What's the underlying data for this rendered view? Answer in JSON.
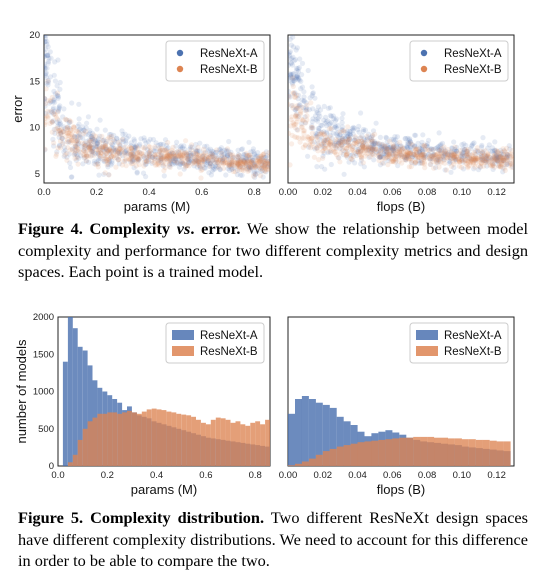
{
  "figure4": {
    "number": "Figure 4.",
    "title_parts": [
      "Complexity ",
      "vs",
      ". error."
    ],
    "text": "We show the relationship between model complexity and performance for two different complexity metrics and design spaces. Each point is a trained model."
  },
  "figure5": {
    "number": "Figure 5.",
    "title": "Complexity distribution.",
    "text": "Two different ResNeXt design spaces have different complexity distributions. We need to account for this difference in order to be able to compare the two."
  },
  "colors": {
    "a": "#4c72b0",
    "b": "#dd8452"
  },
  "chart_data": [
    {
      "type": "scatter",
      "xlabel": "params (M)",
      "ylabel": "error",
      "xlim": [
        0,
        0.86
      ],
      "ylim": [
        4,
        20
      ],
      "xticks": [
        "0.0",
        "0.2",
        "0.4",
        "0.6",
        "0.8"
      ],
      "xtick_values": [
        0,
        0.2,
        0.4,
        0.6,
        0.8
      ],
      "yticks": [
        "5",
        "10",
        "15",
        "20"
      ],
      "ytick_values": [
        5,
        10,
        15,
        20
      ],
      "legend": "top-right",
      "series": [
        {
          "name": "ResNeXt-A",
          "trend": [
            [
              0.01,
              17.5
            ],
            [
              0.03,
              13
            ],
            [
              0.06,
              10
            ],
            [
              0.1,
              8.6
            ],
            [
              0.2,
              7.8
            ],
            [
              0.4,
              7.2
            ],
            [
              0.6,
              6.7
            ],
            [
              0.86,
              6.2
            ]
          ]
        },
        {
          "name": "ResNeXt-B",
          "trend": [
            [
              0.03,
              11
            ],
            [
              0.08,
              9
            ],
            [
              0.15,
              7.8
            ],
            [
              0.3,
              7.1
            ],
            [
              0.5,
              6.8
            ],
            [
              0.7,
              6.4
            ],
            [
              0.86,
              6.1
            ]
          ]
        }
      ]
    },
    {
      "type": "scatter",
      "xlabel": "flops (B)",
      "ylabel": "",
      "xlim": [
        0,
        0.13
      ],
      "ylim": [
        4,
        20
      ],
      "xticks": [
        "0.00",
        "0.02",
        "0.04",
        "0.06",
        "0.08",
        "0.10",
        "0.12"
      ],
      "xtick_values": [
        0,
        0.02,
        0.04,
        0.06,
        0.08,
        0.1,
        0.12
      ],
      "legend": "top-right",
      "series": [
        {
          "name": "ResNeXt-A",
          "trend": [
            [
              0.002,
              17
            ],
            [
              0.01,
              12
            ],
            [
              0.02,
              9.5
            ],
            [
              0.04,
              8.2
            ],
            [
              0.07,
              7.5
            ],
            [
              0.1,
              7
            ],
            [
              0.13,
              6.6
            ]
          ]
        },
        {
          "name": "ResNeXt-B",
          "trend": [
            [
              0.005,
              11
            ],
            [
              0.015,
              9
            ],
            [
              0.03,
              8
            ],
            [
              0.06,
              7.2
            ],
            [
              0.09,
              6.8
            ],
            [
              0.13,
              6.4
            ]
          ]
        }
      ]
    },
    {
      "type": "bar",
      "xlabel": "params (M)",
      "ylabel": "number of models",
      "xlim": [
        0,
        0.86
      ],
      "ylim": [
        0,
        2000
      ],
      "xticks": [
        "0.0",
        "0.2",
        "0.4",
        "0.6",
        "0.8"
      ],
      "xtick_values": [
        0,
        0.2,
        0.4,
        0.6,
        0.8
      ],
      "yticks": [
        "0",
        "500",
        "1000",
        "1500",
        "2000"
      ],
      "ytick_values": [
        0,
        500,
        1000,
        1500,
        2000
      ],
      "legend": "top-right",
      "bin_width": 0.02,
      "series": [
        {
          "name": "ResNeXt-A",
          "values": [
            0,
            1400,
            2000,
            1850,
            1600,
            1550,
            1350,
            1150,
            1050,
            1000,
            950,
            900,
            850,
            750,
            800,
            720,
            680,
            660,
            640,
            600,
            580,
            560,
            540,
            520,
            500,
            480,
            460,
            440,
            420,
            400,
            380,
            370,
            360,
            350,
            340,
            330,
            320,
            310,
            300,
            290,
            280,
            270,
            260
          ]
        },
        {
          "name": "ResNeXt-B",
          "values": [
            0,
            0,
            50,
            150,
            350,
            500,
            600,
            650,
            700,
            700,
            720,
            720,
            700,
            720,
            740,
            720,
            700,
            730,
            760,
            770,
            760,
            750,
            730,
            720,
            700,
            690,
            680,
            660,
            620,
            580,
            560,
            620,
            650,
            640,
            620,
            580,
            600,
            560,
            540,
            580,
            600,
            560,
            620
          ]
        }
      ]
    },
    {
      "type": "bar",
      "xlabel": "flops (B)",
      "ylabel": "",
      "xlim": [
        0,
        0.13
      ],
      "ylim": [
        0,
        2000
      ],
      "xticks": [
        "0.00",
        "0.02",
        "0.04",
        "0.06",
        "0.08",
        "0.10",
        "0.12"
      ],
      "xtick_values": [
        0,
        0.02,
        0.04,
        0.06,
        0.08,
        0.1,
        0.12
      ],
      "legend": "top-right",
      "bin_width": 0.004,
      "series": [
        {
          "name": "ResNeXt-A",
          "values": [
            700,
            900,
            940,
            900,
            850,
            820,
            780,
            660,
            600,
            550,
            460,
            400,
            440,
            460,
            480,
            450,
            420,
            380,
            350,
            330,
            320,
            310,
            300,
            290,
            280,
            260,
            250,
            240,
            230,
            220,
            210,
            200
          ]
        },
        {
          "name": "ResNeXt-B",
          "values": [
            10,
            30,
            60,
            100,
            150,
            200,
            230,
            260,
            280,
            300,
            320,
            330,
            340,
            350,
            360,
            370,
            380,
            380,
            390,
            390,
            390,
            380,
            380,
            370,
            370,
            360,
            360,
            350,
            350,
            340,
            330,
            330
          ]
        }
      ]
    }
  ]
}
